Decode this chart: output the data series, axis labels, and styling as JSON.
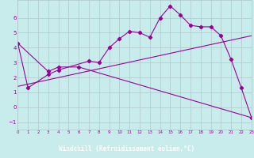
{
  "xlabel": "Windchill (Refroidissement éolien,°C)",
  "bg_color": "#c8ecec",
  "xlabel_bg": "#660066",
  "line_color": "#990099",
  "grid_color": "#b0c8c8",
  "xlim": [
    0,
    23
  ],
  "ylim": [
    -1.5,
    7.2
  ],
  "yticks": [
    -1,
    0,
    1,
    2,
    3,
    4,
    5,
    6
  ],
  "xticks": [
    0,
    1,
    2,
    3,
    4,
    5,
    6,
    7,
    8,
    9,
    10,
    11,
    12,
    13,
    14,
    15,
    16,
    17,
    18,
    19,
    20,
    21,
    22,
    23
  ],
  "line1_x": [
    0,
    1,
    3,
    4,
    7,
    8,
    9,
    10,
    11,
    12,
    13,
    14,
    15,
    16,
    17,
    18,
    19,
    20,
    21,
    22,
    23
  ],
  "line1_y": [
    4.3,
    1.3,
    2.2,
    2.5,
    3.1,
    3.0,
    4.0,
    4.6,
    5.1,
    5.0,
    4.7,
    6.0,
    6.8,
    6.2,
    5.5,
    5.4,
    5.4,
    4.8,
    3.2,
    1.3,
    -0.7
  ],
  "line2_x": [
    0,
    3,
    4,
    6,
    23
  ],
  "line2_y": [
    4.3,
    2.4,
    2.7,
    2.7,
    -0.7
  ],
  "line3_x": [
    0,
    23
  ],
  "line3_y": [
    1.4,
    4.8
  ]
}
